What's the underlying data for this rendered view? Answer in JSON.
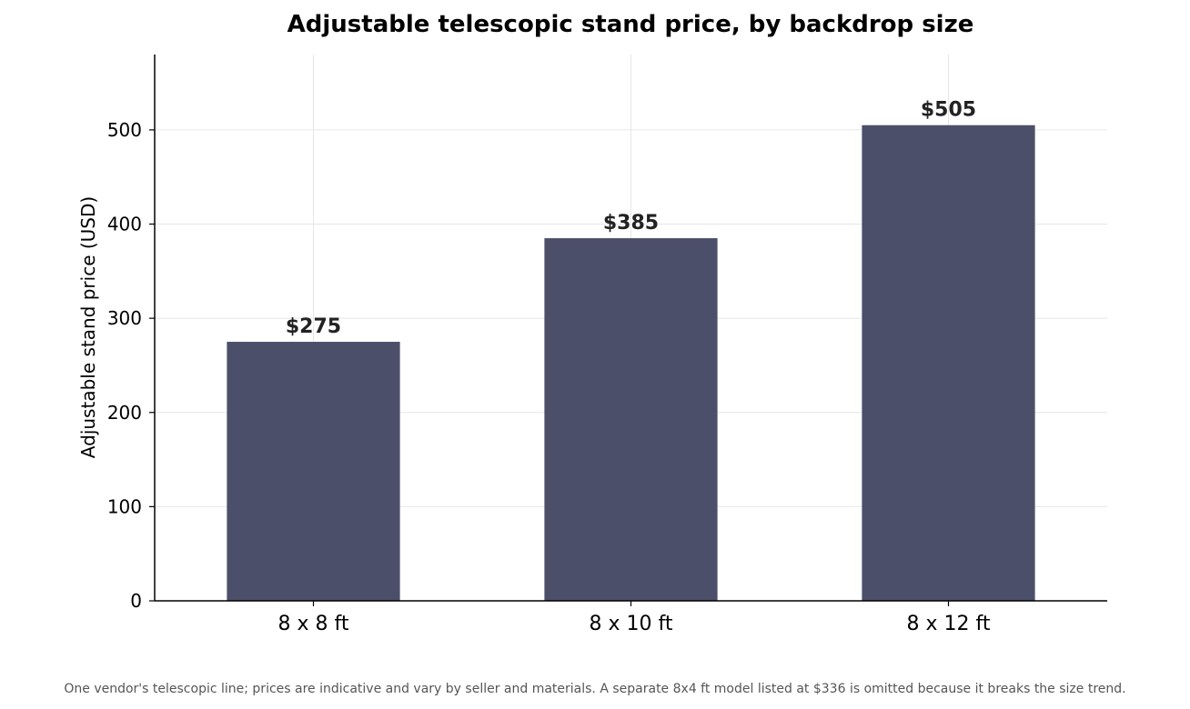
{
  "chart_data": {
    "type": "bar",
    "title": "Adjustable telescopic stand price, by backdrop size",
    "xlabel": "",
    "ylabel": "Adjustable stand price (USD)",
    "categories": [
      "8 x 8 ft",
      "8 x 10 ft",
      "8 x 12 ft"
    ],
    "values": [
      275,
      385,
      505
    ],
    "value_labels": [
      "$275",
      "$385",
      "$505"
    ],
    "yticks": [
      0,
      100,
      200,
      300,
      400,
      500
    ],
    "ylim": [
      0,
      580
    ],
    "grid": true,
    "bar_color": "#4b4f69",
    "footnote": "One vendor's telescopic line; prices are indicative and vary by seller and materials. A separate 8x4 ft model listed at $336 is omitted because it breaks the size trend."
  }
}
